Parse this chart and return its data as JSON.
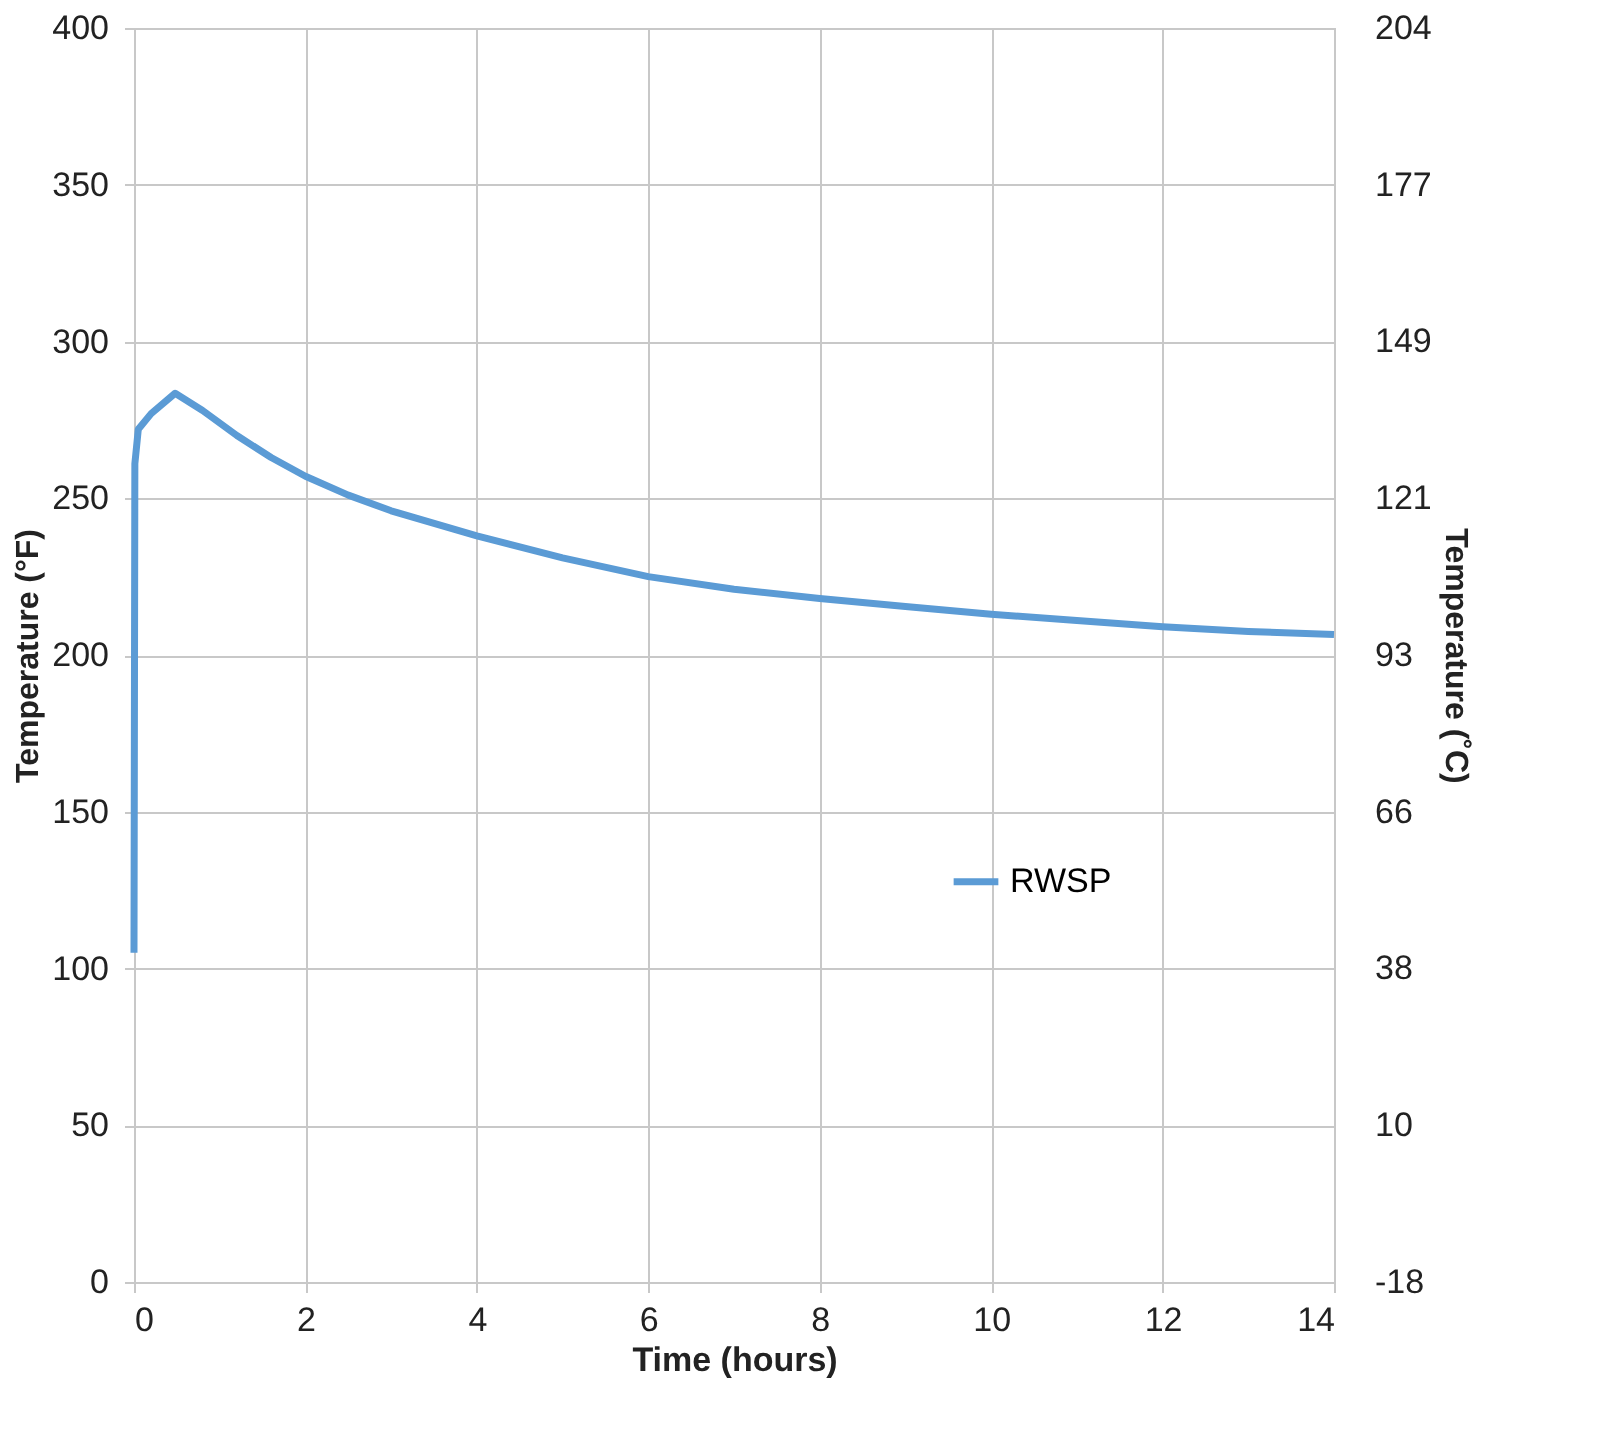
{
  "chart_data": {
    "type": "line",
    "xlabel": "Time (hours)",
    "ylabel": "Temperature (°F)",
    "y2label": "Temperature (˚C)",
    "xlim": [
      0,
      14
    ],
    "xticks": [
      0,
      2,
      4,
      6,
      8,
      10,
      12,
      14
    ],
    "ylim": [
      0,
      400
    ],
    "yticks": [
      0,
      50,
      100,
      150,
      200,
      250,
      300,
      350,
      400
    ],
    "y2lim": [
      -17.78,
      204.44
    ],
    "y2ticks": [
      {
        "value": -17.78,
        "label": "-18"
      },
      {
        "value": 10,
        "label": "10"
      },
      {
        "value": 37.78,
        "label": "38"
      },
      {
        "value": 65.56,
        "label": "66"
      },
      {
        "value": 93.33,
        "label": "93"
      },
      {
        "value": 121.11,
        "label": "121"
      },
      {
        "value": 148.89,
        "label": "149"
      },
      {
        "value": 176.67,
        "label": "177"
      },
      {
        "value": 204.44,
        "label": "204"
      }
    ],
    "grid": true,
    "legend": "right",
    "marker": "none",
    "line_style": "solid",
    "series": [
      {
        "name": "RWSP",
        "color": "#5b9bd5",
        "x": [
          0,
          0.01,
          0.05,
          0.2,
          0.48,
          0.8,
          1.2,
          1.6,
          2,
          2.5,
          3,
          4,
          5,
          6,
          7,
          8,
          9,
          10,
          11,
          12,
          13,
          14
        ],
        "values": [
          105,
          261,
          272,
          277,
          283.5,
          278,
          270,
          263,
          257,
          251,
          246,
          238,
          231,
          225,
          221,
          218,
          215.5,
          213,
          211,
          209,
          207.5,
          206.5
        ]
      }
    ]
  }
}
